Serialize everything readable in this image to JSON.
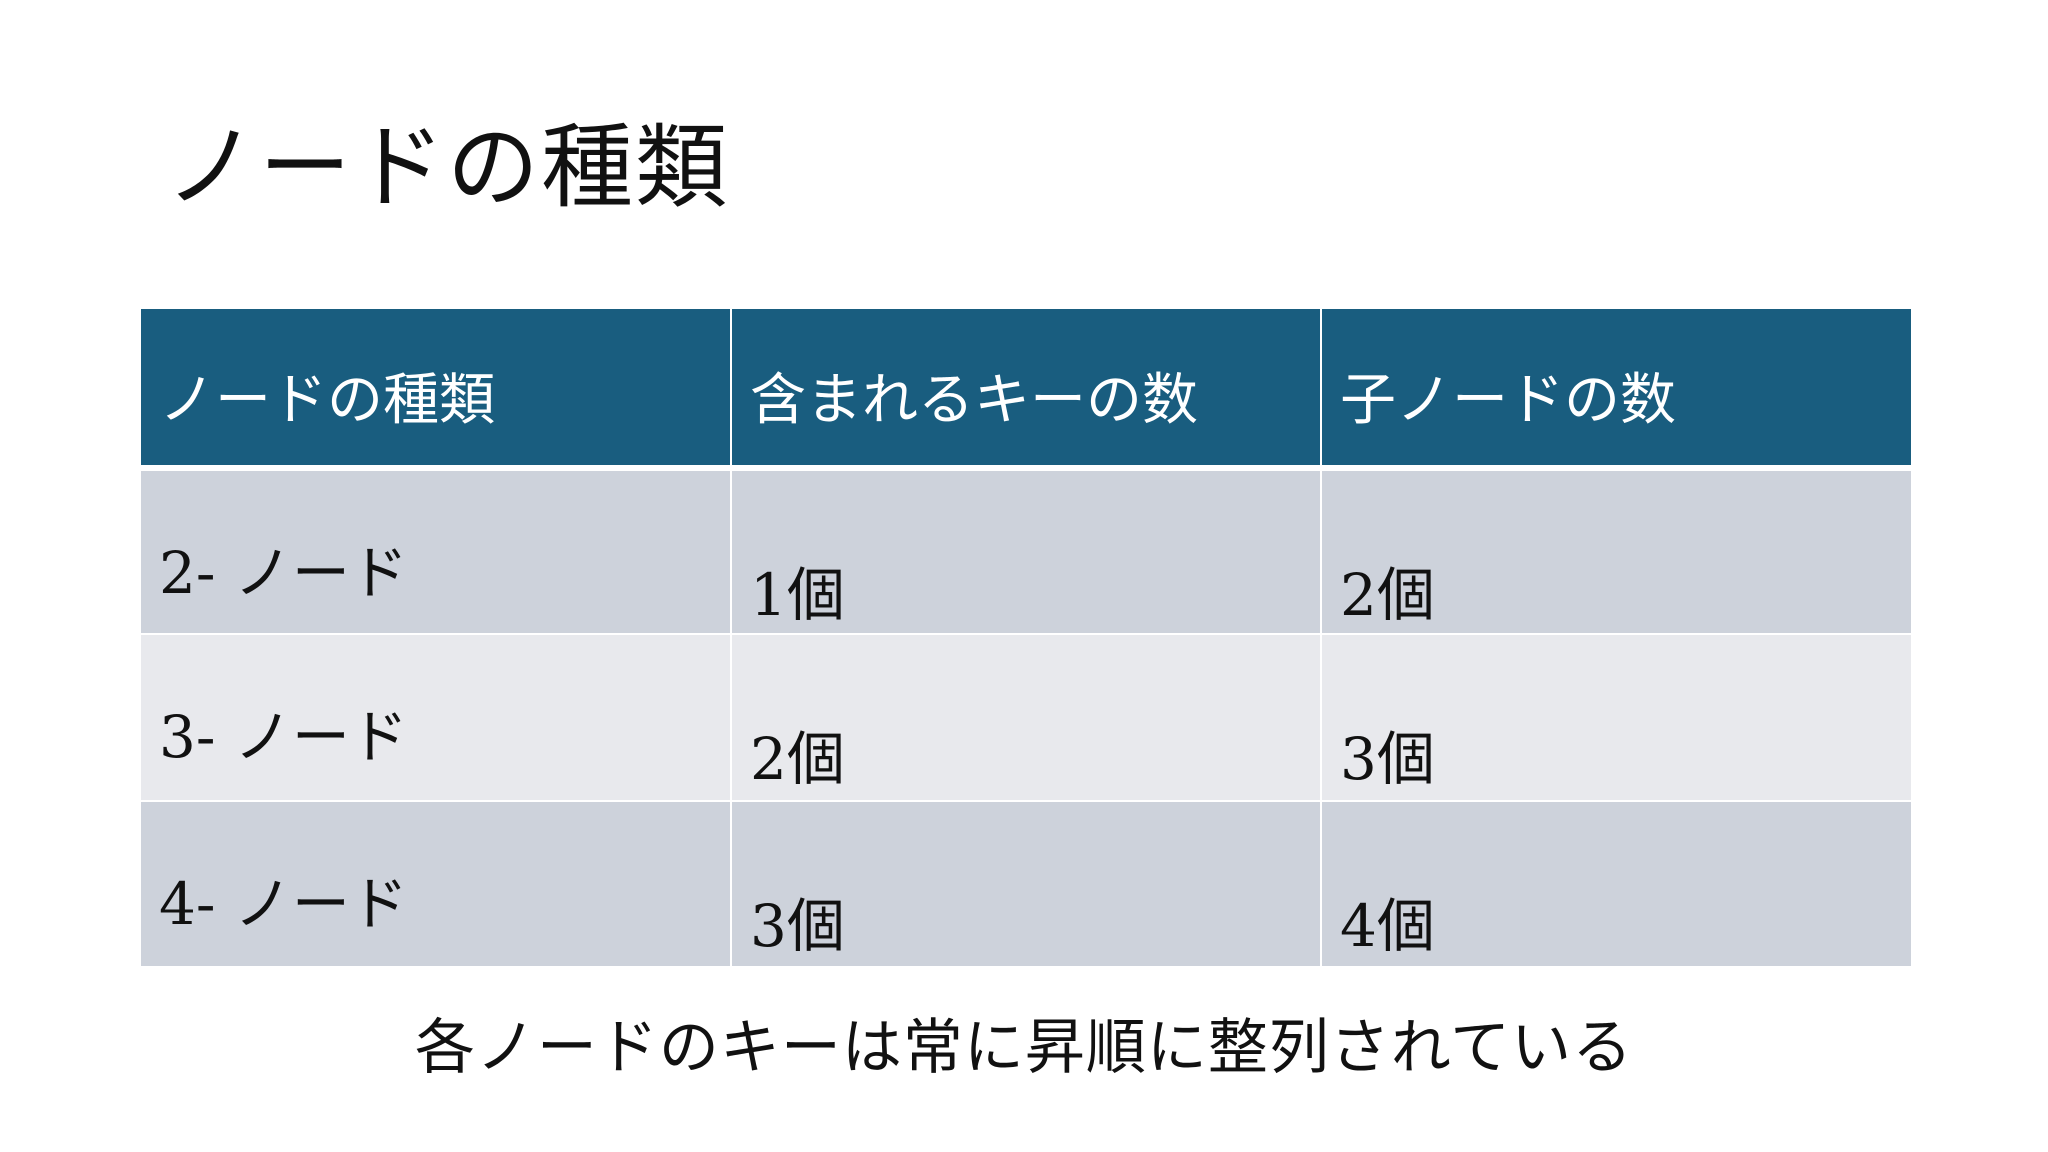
{
  "slide": {
    "title": "ノードの種類",
    "caption": "各ノードのキーは常に昇順に整列されている"
  },
  "table": {
    "headers": [
      "ノードの種類",
      "含まれるキーの数",
      "子ノードの数"
    ],
    "rows": [
      [
        "2- ノード",
        "1個",
        "2個"
      ],
      [
        "3- ノード",
        "2個",
        "3個"
      ],
      [
        "4- ノード",
        "3個",
        "4個"
      ]
    ]
  },
  "colors": {
    "header_background": "#195d7f",
    "row_background_dark": "#cdd2db",
    "row_background_light": "#e8e9ed"
  }
}
